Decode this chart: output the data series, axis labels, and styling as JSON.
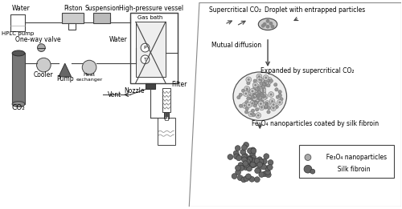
{
  "bg_color": "#ffffff",
  "lc": "#555555",
  "dc": "#333333",
  "figsize": [
    5.0,
    2.61
  ],
  "dpi": 100,
  "labels": {
    "water": "Water",
    "piston": "Piston",
    "high_pressure": "High-pressure vessel",
    "suspension": "Suspension",
    "hplc": "HPLC pump",
    "gas_bath": "Gas bath",
    "water2": "Water",
    "one_way": "One-way valve",
    "cooler": "Cooler",
    "pump": "Pump",
    "heat_ex": "Heat\nexchanger",
    "nozzle": "Nozzle",
    "vent": "Vent",
    "co2": "CO₂",
    "filter": "Filter",
    "supercrit": "Supercritical CO₂",
    "droplet": "Droplet with entrapped particles",
    "mutual": "Mutual diffusion",
    "expanded": "Expanded by supercritical CO₂",
    "fe3o4_coat": "Fe₃O₄ nanoparticles coated by silk fibroin",
    "legend1": "  Fe₃O₄ nanoparticles",
    "legend2": "  Silk fibroin"
  }
}
